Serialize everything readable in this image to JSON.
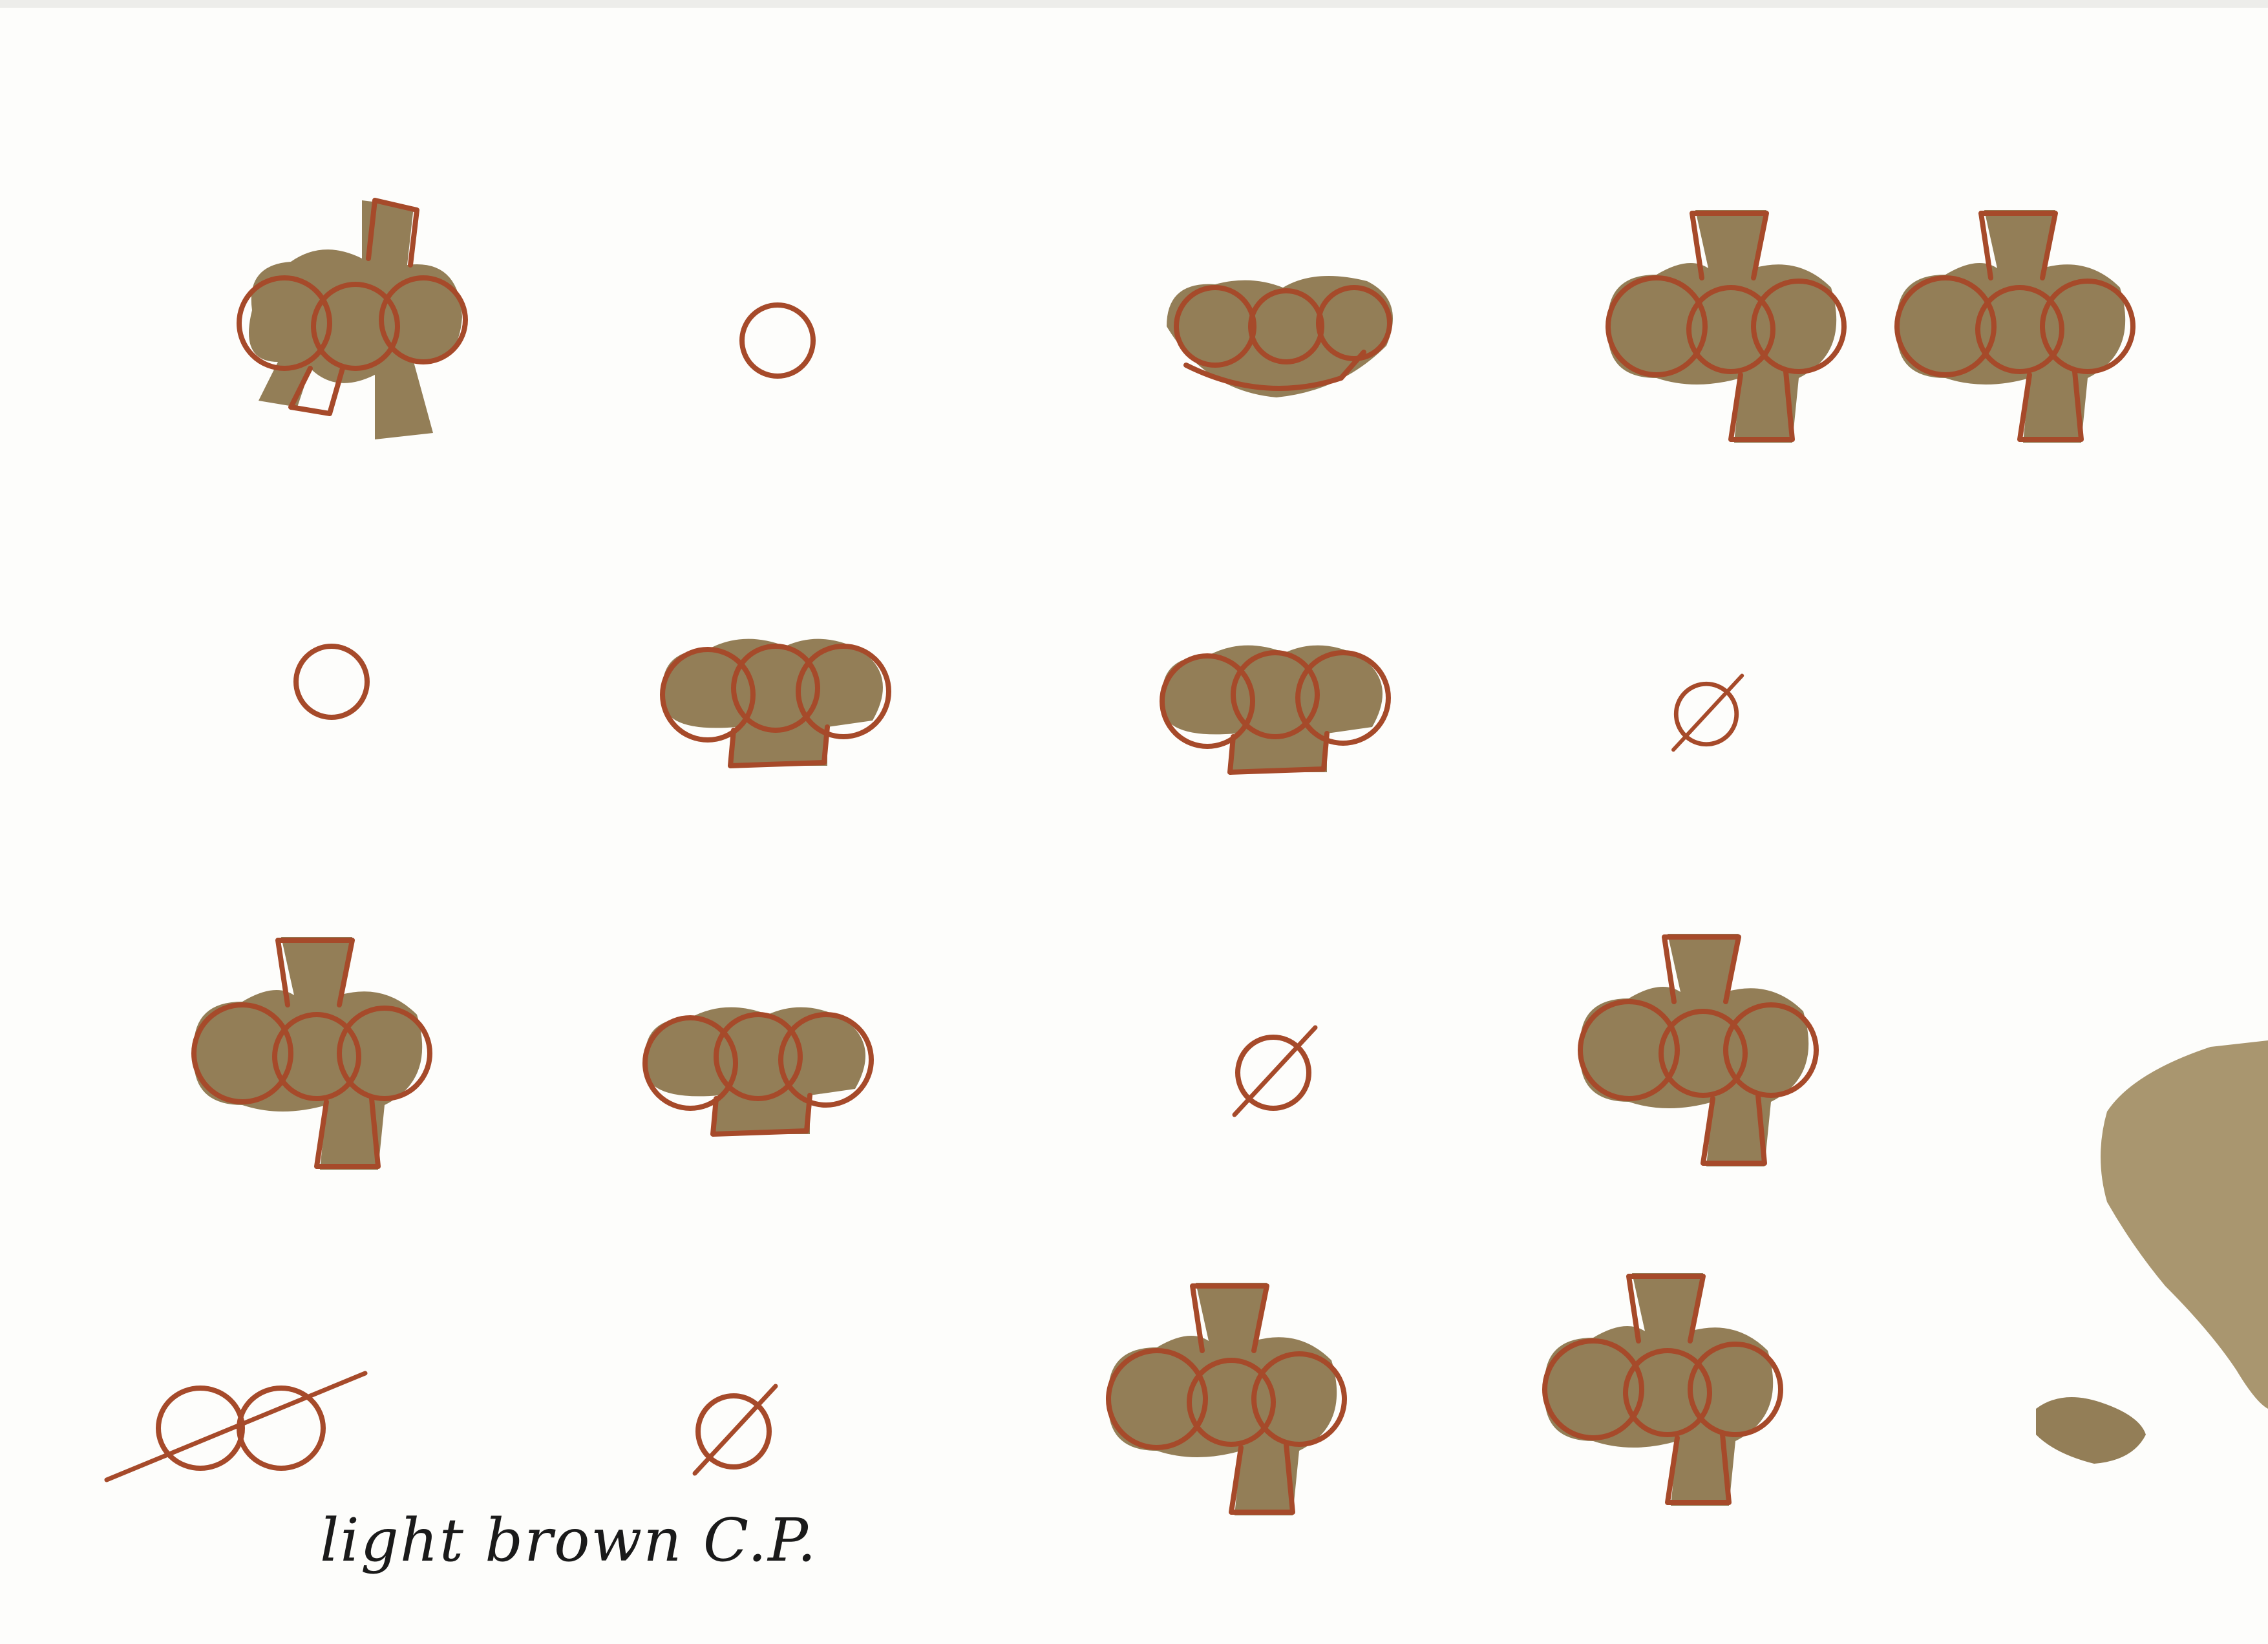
{
  "note": {
    "text": "light brown C.P."
  },
  "colors": {
    "paper": "#fdfdfb",
    "wash": "#8a7349",
    "pencil_outline": "#a64a2a",
    "ink": "#1a1a1a"
  },
  "glyphs": [
    "club-shape",
    "circle",
    "club-shape-no-stem",
    "club-shape",
    "club-shape",
    "circle",
    "club-shape-base",
    "club-shape-base",
    "slashed-circle",
    "club-shape",
    "club-shape-base",
    "slashed-circle",
    "club-shape",
    "linked-circles-struck",
    "slashed-circle",
    "club-shape",
    "club-shape"
  ]
}
